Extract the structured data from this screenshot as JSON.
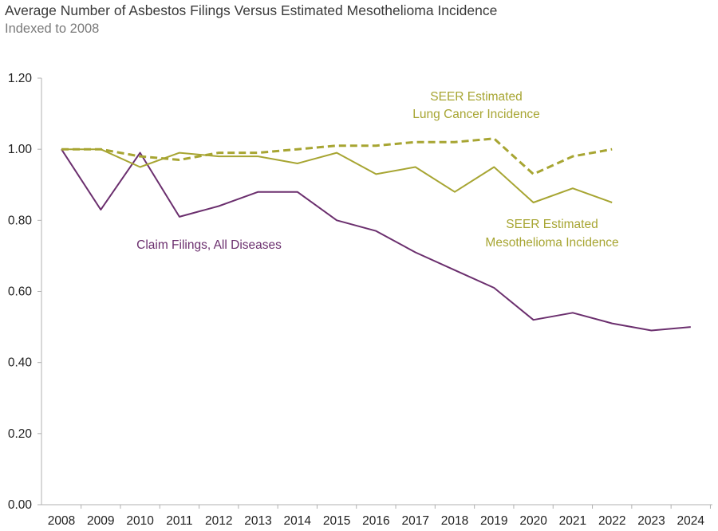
{
  "chart_data": {
    "type": "line",
    "title": "Average Number of Asbestos Filings Versus Estimated Mesothelioma Incidence",
    "subtitle": "Indexed to 2008",
    "xlabel": "",
    "ylabel": "",
    "ylim": [
      0,
      1.2
    ],
    "yticks": [
      "0.00",
      "0.20",
      "0.40",
      "0.60",
      "0.80",
      "1.00",
      "1.20"
    ],
    "categories": [
      "2008",
      "2009",
      "2010",
      "2011",
      "2012",
      "2013",
      "2014",
      "2015",
      "2016",
      "2017",
      "2018",
      "2019",
      "2020",
      "2021",
      "2022",
      "2023",
      "2024"
    ],
    "grid": false,
    "legend": "none",
    "series": [
      {
        "name": "Claim Filings, All Diseases",
        "color": "#6b2f6e",
        "dash": false,
        "label_lines": [
          "Claim Filings, All Diseases"
        ],
        "values": [
          1.0,
          0.83,
          0.99,
          0.81,
          0.84,
          0.88,
          0.88,
          0.8,
          0.77,
          0.71,
          0.66,
          0.61,
          0.52,
          0.54,
          0.51,
          0.49,
          0.5
        ]
      },
      {
        "name": "SEER Estimated Mesothelioma Incidence",
        "color": "#a7a532",
        "dash": false,
        "label_lines": [
          "SEER Estimated",
          "Mesothelioma Incidence"
        ],
        "values": [
          1.0,
          1.0,
          0.95,
          0.99,
          0.98,
          0.98,
          0.96,
          0.99,
          0.93,
          0.95,
          0.88,
          0.95,
          0.85,
          0.89,
          0.85,
          null,
          null
        ]
      },
      {
        "name": "SEER Estimated Lung Cancer Incidence",
        "color": "#a7a532",
        "dash": true,
        "label_lines": [
          "SEER Estimated",
          "Lung Cancer Incidence"
        ],
        "values": [
          1.0,
          1.0,
          0.98,
          0.97,
          0.99,
          0.99,
          1.0,
          1.01,
          1.01,
          1.02,
          1.02,
          1.03,
          0.93,
          0.98,
          1.0,
          null,
          null
        ]
      }
    ]
  }
}
